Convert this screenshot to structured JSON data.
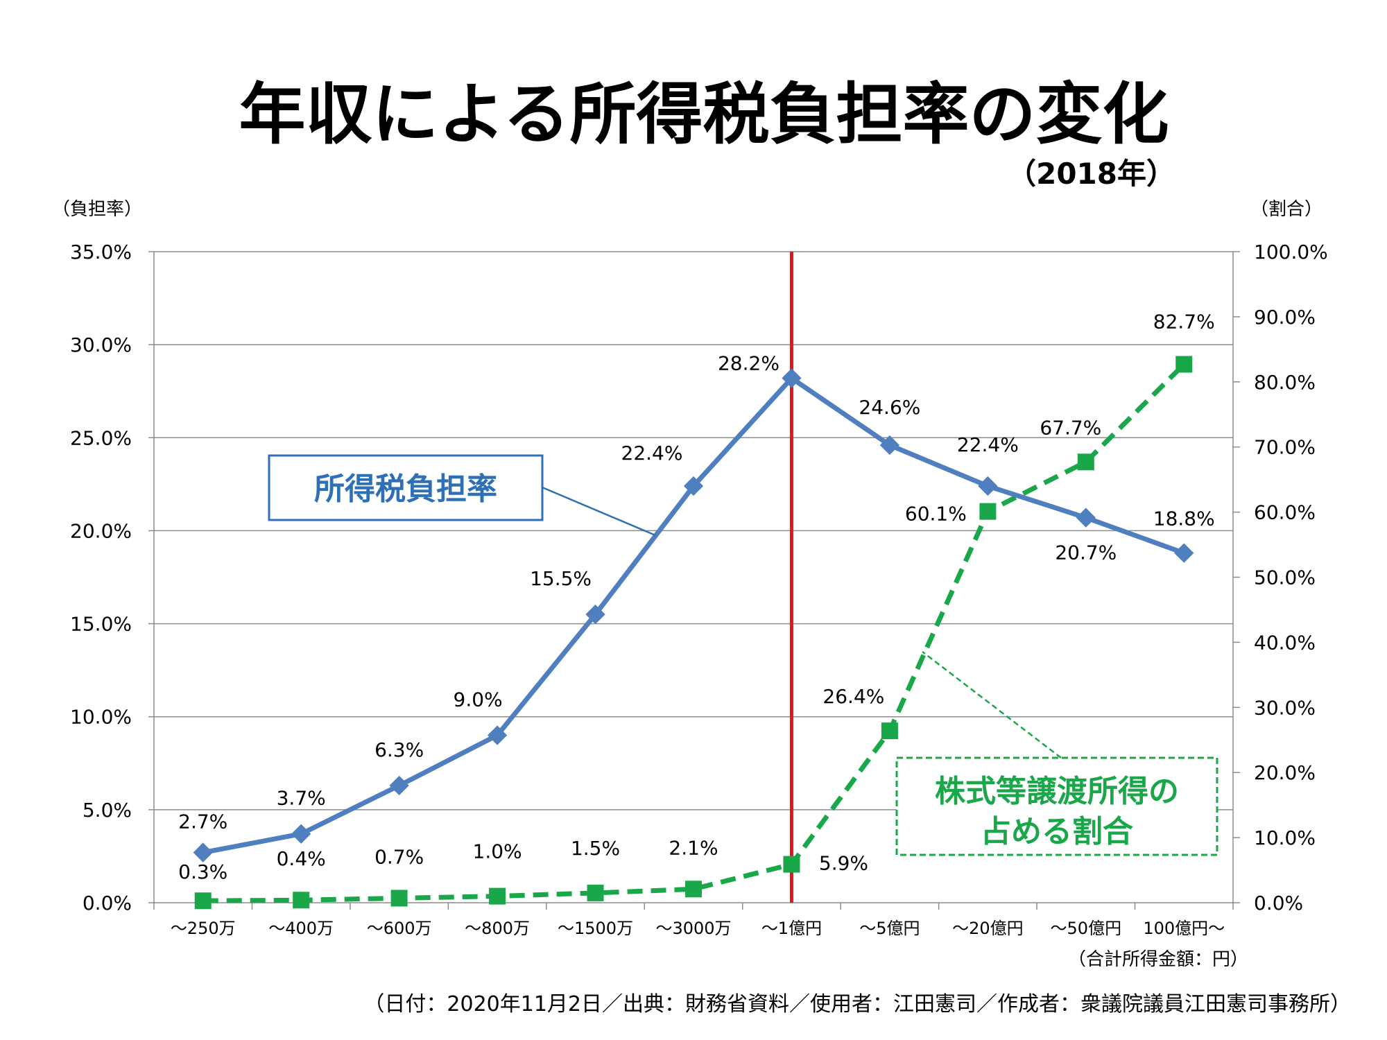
{
  "chart_data": {
    "type": "line",
    "title": "年収による所得税負担率の変化",
    "subtitle": "（2018年）",
    "ylabel_left": "（負担率）",
    "ylabel_right": "（割合）",
    "xlabel": "（合計所得金額：円）",
    "ylim_left": [
      0,
      35
    ],
    "ylim_right": [
      0,
      100
    ],
    "yticks_left": [
      "0.0%",
      "5.0%",
      "10.0%",
      "15.0%",
      "20.0%",
      "25.0%",
      "30.0%",
      "35.0%"
    ],
    "yticks_right": [
      "0.0%",
      "10.0%",
      "20.0%",
      "30.0%",
      "40.0%",
      "50.0%",
      "60.0%",
      "70.0%",
      "80.0%",
      "90.0%",
      "100.0%"
    ],
    "grid": true,
    "categories": [
      "～250万",
      "～400万",
      "～600万",
      "～800万",
      "～1500万",
      "～3000万",
      "～1億円",
      "～5億円",
      "～20億円",
      "～50億円",
      "100億円～"
    ],
    "series": [
      {
        "name": "所得税負担率",
        "axis": "left",
        "color": "#4f7fbf",
        "values": [
          2.7,
          3.7,
          6.3,
          9.0,
          15.5,
          22.4,
          28.2,
          24.6,
          22.4,
          20.7,
          18.8
        ],
        "labels": [
          "2.7%",
          "3.7%",
          "6.3%",
          "9.0%",
          "15.5%",
          "22.4%",
          "28.2%",
          "24.6%",
          "22.4%",
          "20.7%",
          "18.8%"
        ]
      },
      {
        "name": "株式等譲渡所得の占める割合",
        "axis": "right",
        "color": "#1aa74a",
        "values": [
          0.3,
          0.4,
          0.7,
          1.0,
          1.5,
          2.1,
          5.9,
          26.4,
          60.1,
          67.7,
          82.7
        ],
        "labels": [
          "0.3%",
          "0.4%",
          "0.7%",
          "1.0%",
          "1.5%",
          "2.1%",
          "5.9%",
          "26.4%",
          "60.1%",
          "67.7%",
          "82.7%"
        ]
      }
    ],
    "marker_line": {
      "category": "～1億円",
      "color": "#e8141b"
    },
    "callouts": [
      {
        "lines": [
          "所得税負担率"
        ],
        "color": "#2f6fb5"
      },
      {
        "lines": [
          "株式等譲渡所得の",
          "占める割合"
        ],
        "color": "#1aa74a"
      }
    ]
  },
  "footer_note": "（日付：2020年11月2日／出典：財務省資料／使用者：江田憲司／作成者：衆議院議員江田憲司事務所）"
}
